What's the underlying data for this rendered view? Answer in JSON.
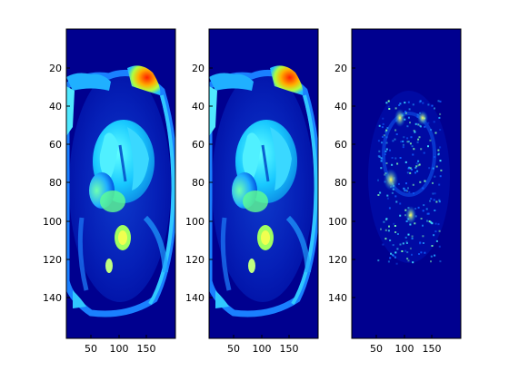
{
  "figure": {
    "panels": [
      {
        "name": "panel-original",
        "kind": "cardiac-mri",
        "x_ticks": [
          "50",
          "100",
          "150"
        ],
        "y_ticks": [
          "20",
          "40",
          "60",
          "80",
          "100",
          "120",
          "140"
        ],
        "colormap": "jet"
      },
      {
        "name": "panel-reconstruction",
        "kind": "cardiac-mri",
        "x_ticks": [
          "50",
          "100",
          "150"
        ],
        "y_ticks": [
          "20",
          "40",
          "60",
          "80",
          "100",
          "120",
          "140"
        ],
        "colormap": "jet"
      },
      {
        "name": "panel-difference",
        "kind": "sparse-difference",
        "x_ticks": [
          "50",
          "100",
          "150"
        ],
        "y_ticks": [
          "20",
          "40",
          "60",
          "80",
          "100",
          "120",
          "140"
        ],
        "colormap": "jet"
      }
    ],
    "colors": {
      "background": "#00008f",
      "low": "#0000c8",
      "mid": "#00a0ff",
      "cyan": "#30e0ff",
      "yellow": "#f0ff40",
      "red": "#ff2000"
    }
  }
}
